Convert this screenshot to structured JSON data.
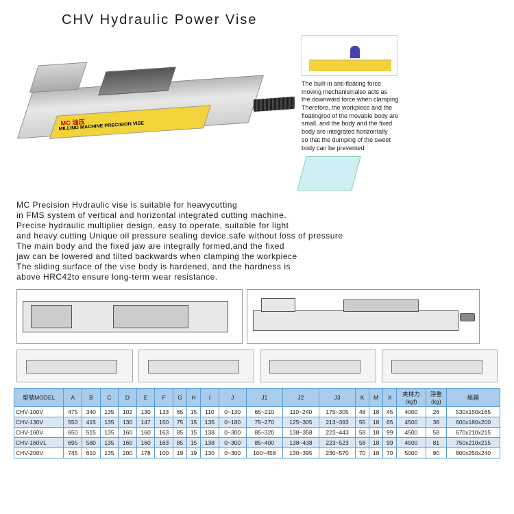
{
  "title": "CHV Hydraulic Power Vise",
  "vise_label_main": "MC 油压",
  "vise_label_sub": "MILLING MACHINE  PRECISION VISE",
  "inset_blurb": "The built-in anti-floating force\nmoving mechanismalso acts as\nthe downward force when clamping\nTherefore, the workpiece and the\nfloatingrod of the movable body are\nsmall, and the body and the fixed\nbody are integrated horizontally\nso that the dumping of the sweet\nbody can be prevented",
  "description": "MC Precision Hvdraulic vise is suitable for heavycutting\nin FMS system of vertical and horizontal integrated cutting machine.\nPrecise hydraulic multiplier design, easy to operate, suitable for light\nand heavy cutting Unique oil pressure sealing device.safe without loss of pressure\nThe main body and the fixed jaw are integrally formed,and the fixed\n jaw can be lowered and tilted backwards when clamping the workpiece\nThe sliding surface of the vise body is hardened, and the hardness is\nabove HRC42to ensure long-term wear resistance.",
  "table": {
    "header_bg": "#a8cceb",
    "alt_bg": "#d9e7f5",
    "border_color": "#5b9bd5",
    "columns": [
      "型號MODEL",
      "A",
      "B",
      "C",
      "D",
      "E",
      "F",
      "G",
      "H",
      "I",
      "J",
      "J1",
      "J2",
      "J3",
      "K",
      "M",
      "X",
      "夹持力\n(kgf)",
      "淨重\n(kg)",
      "紙箱"
    ],
    "rows": [
      [
        "CHV-100V",
        "475",
        "340",
        "135",
        "102",
        "130",
        "133",
        "65",
        "15",
        "110",
        "0~130",
        "65~210",
        "110~240",
        "175~305",
        "48",
        "18",
        "45",
        "4000",
        "26",
        "530x150x165"
      ],
      [
        "CHV-130V",
        "550",
        "415",
        "135",
        "130",
        "147",
        "150",
        "75",
        "15",
        "135",
        "0~180",
        "75~270",
        "125~305",
        "213~393",
        "55",
        "18",
        "65",
        "4500",
        "38",
        "600x180x200"
      ],
      [
        "CHV-160V",
        "650",
        "515",
        "135",
        "160",
        "160",
        "163",
        "85",
        "15",
        "138",
        "0~300",
        "85~320",
        "138~358",
        "223~443",
        "58",
        "18",
        "99",
        "4500",
        "58",
        "670x210x215"
      ],
      [
        "CHV-160VL",
        "695",
        "580",
        "135",
        "160",
        "160",
        "163",
        "85",
        "15",
        "138",
        "0~300",
        "85~400",
        "138~438",
        "223~523",
        "58",
        "18",
        "99",
        "4500",
        "81",
        "750x210x215"
      ],
      [
        "CHV-200V",
        "745",
        "610",
        "135",
        "200",
        "178",
        "100",
        "19",
        "19",
        "130",
        "0~300",
        "100~458",
        "130~395",
        "230~570",
        "70",
        "18",
        "70",
        "5000",
        "90",
        "800x250x240"
      ]
    ]
  }
}
